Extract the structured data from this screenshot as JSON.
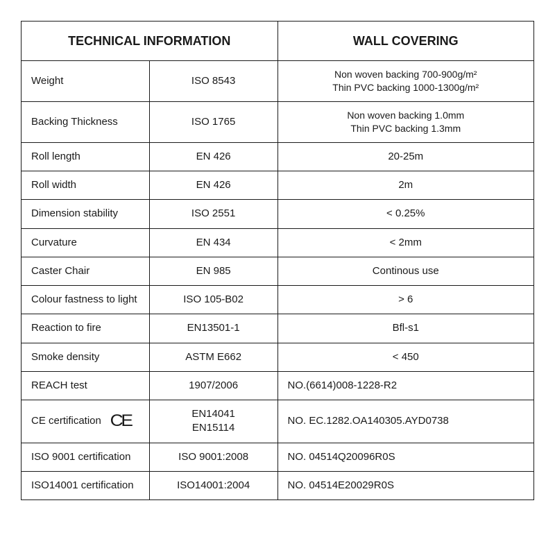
{
  "table": {
    "header": {
      "tech_info": "TECHNICAL INFORMATION",
      "wall_covering": "WALL COVERING"
    },
    "colors": {
      "border": "#1a1a1a",
      "background": "#ffffff",
      "text": "#1a1a1a"
    },
    "font_sizes": {
      "header_pt": 18,
      "body_pt": 15,
      "multi_pt": 14
    },
    "column_widths_pct": [
      29,
      21,
      50
    ],
    "rows": [
      {
        "prop": "Weight",
        "std": "ISO 8543",
        "val1": "Non woven backing 700-900g/m²",
        "val2": "Thin PVC backing 1000-1300g/m²",
        "val_align": "center",
        "multi": true
      },
      {
        "prop": "Backing Thickness",
        "std": "ISO 1765",
        "val1": "Non woven backing 1.0mm",
        "val2": "Thin PVC backing 1.3mm",
        "val_align": "center",
        "multi": true
      },
      {
        "prop": "Roll length",
        "std": "EN 426",
        "val": "20-25m",
        "val_align": "center"
      },
      {
        "prop": "Roll width",
        "std": "EN 426",
        "val": "2m",
        "val_align": "center"
      },
      {
        "prop": "Dimension stability",
        "std": "ISO 2551",
        "val": "< 0.25%",
        "val_align": "center"
      },
      {
        "prop": "Curvature",
        "std": "EN 434",
        "val": "< 2mm",
        "val_align": "center"
      },
      {
        "prop": "Caster Chair",
        "std": "EN 985",
        "val": "Continous use",
        "val_align": "center"
      },
      {
        "prop": "Colour fastness to light",
        "std": "ISO 105-B02",
        "val": "> 6",
        "val_align": "center"
      },
      {
        "prop": "Reaction to fire",
        "std": "EN13501-1",
        "val": "Bfl-s1",
        "val_align": "center"
      },
      {
        "prop": "Smoke density",
        "std": "ASTM E662",
        "val": "< 450",
        "val_align": "center"
      },
      {
        "prop": "REACH test",
        "std": "1907/2006",
        "val": "NO.(6614)008-1228-R2",
        "val_align": "left"
      },
      {
        "prop": "CE certification",
        "ce": true,
        "std1": "EN14041",
        "std2": "EN15114",
        "val": "NO. EC.1282.OA140305.AYD0738",
        "val_align": "left"
      },
      {
        "prop": "ISO 9001 certification",
        "std": "ISO 9001:2008",
        "val": "NO. 04514Q20096R0S",
        "val_align": "left"
      },
      {
        "prop": "ISO14001 certification",
        "std": "ISO14001:2004",
        "val": "NO. 04514E20029R0S",
        "val_align": "left"
      }
    ],
    "ce_mark_glyph": "CE"
  }
}
